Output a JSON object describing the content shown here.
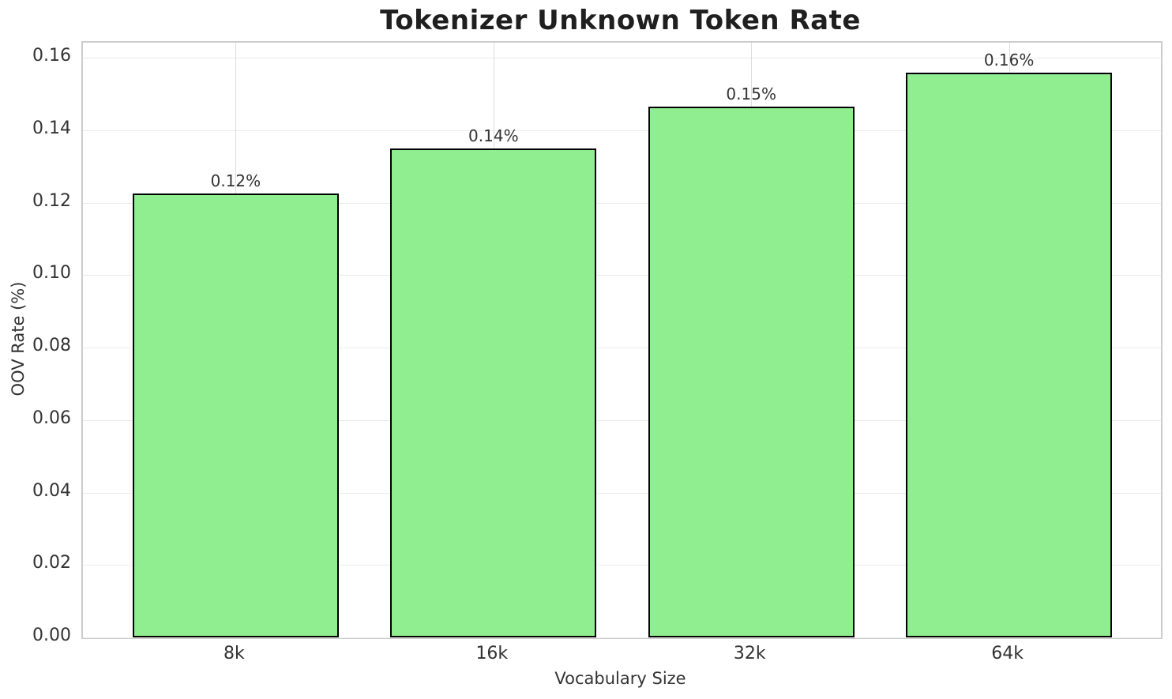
{
  "chart_data": {
    "type": "bar",
    "title": "Tokenizer Unknown Token Rate",
    "xlabel": "Vocabulary Size",
    "ylabel": "OOV Rate (%)",
    "categories": [
      "8k",
      "16k",
      "32k",
      "64k"
    ],
    "values": [
      0.1225,
      0.135,
      0.1465,
      0.156
    ],
    "bar_labels": [
      "0.12%",
      "0.14%",
      "0.15%",
      "0.16%"
    ],
    "ytick_values": [
      0,
      0.02,
      0.04,
      0.06,
      0.08,
      0.1,
      0.12,
      0.14,
      0.16
    ],
    "ytick_labels": [
      "0.00",
      "0.02",
      "0.04",
      "0.06",
      "0.08",
      "0.10",
      "0.12",
      "0.14",
      "0.16"
    ],
    "ylim": [
      0,
      0.1642
    ],
    "grid": true,
    "legend": false,
    "colors": {
      "bar_fill": "#90EE90",
      "bar_edge": "#000000",
      "grid_line_h": "#ebebeb",
      "grid_line_v": "#dddddd",
      "spine": "#cccccc",
      "tick_text": "#333333",
      "title_text": "#1f1f1f",
      "background": "#ffffff"
    }
  }
}
